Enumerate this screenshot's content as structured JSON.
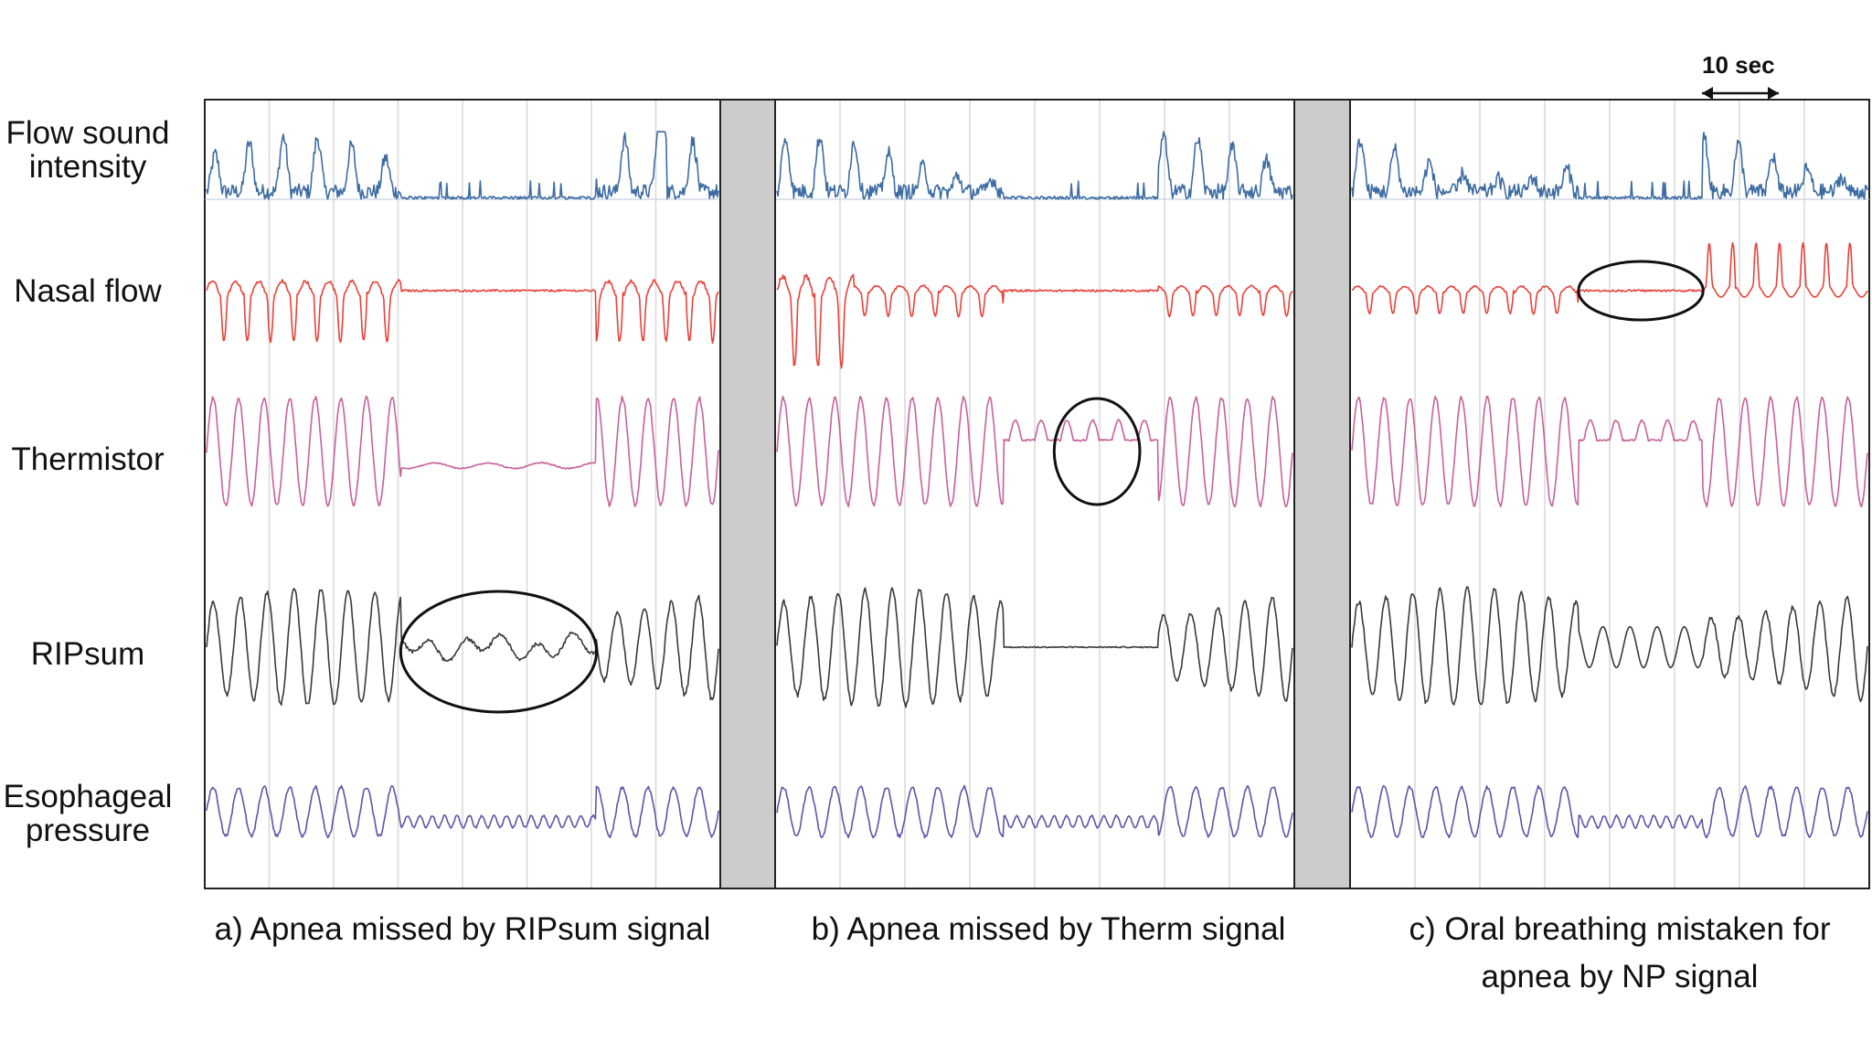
{
  "chart_data": {
    "type": "line",
    "title": "",
    "channels": [
      {
        "name": "Flow sound intensity",
        "color": "#3d6ca3"
      },
      {
        "name": "Nasal flow",
        "color": "#e8423a"
      },
      {
        "name": "Thermistor",
        "color": "#c8609c"
      },
      {
        "name": "RIPsum",
        "color": "#3a3a3a"
      },
      {
        "name": "Esophageal pressure",
        "color": "#5c55a8"
      }
    ],
    "panels": [
      {
        "caption": "a) Apnea missed by\nRIPsum signal",
        "apnea_segment": [
          0.38,
          0.76
        ],
        "annotation": {
          "channel": "RIPsum"
        }
      },
      {
        "caption": "b) Apnea missed by\nTherm signal",
        "apnea_segment": [
          0.44,
          0.74
        ],
        "annotation": {
          "channel": "Thermistor"
        }
      },
      {
        "caption": "c) Oral breathing mistaken\nfor apnea by NP signal",
        "apnea_segment": [
          0.44,
          0.68
        ],
        "annotation": {
          "channel": "Nasal flow"
        }
      }
    ],
    "scale_bar": {
      "label": "10 sec",
      "seconds": 10
    },
    "grid": true,
    "separator_color": "#cccccc"
  }
}
